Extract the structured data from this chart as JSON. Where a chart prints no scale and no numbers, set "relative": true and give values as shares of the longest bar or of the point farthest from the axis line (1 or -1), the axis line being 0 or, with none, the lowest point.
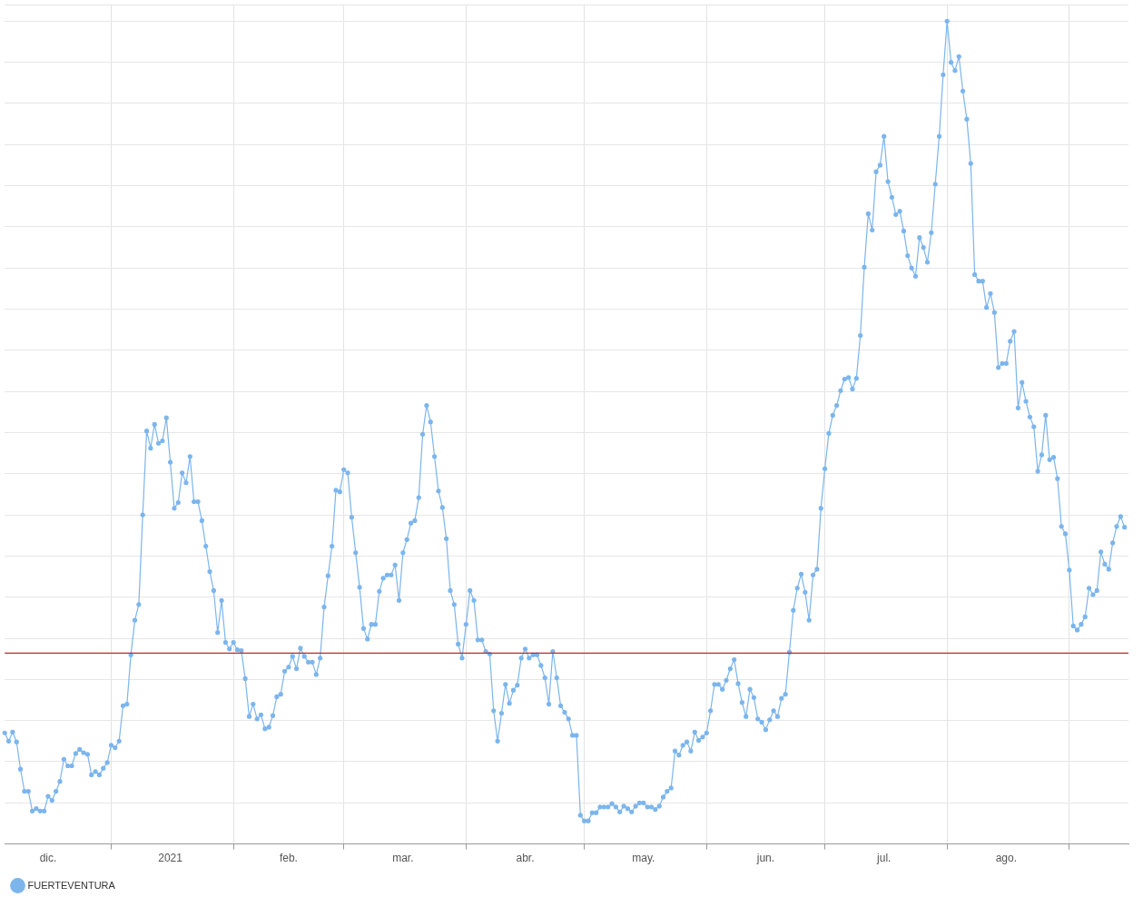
{
  "chart_data": {
    "type": "line",
    "relative": true,
    "grid": true,
    "legend": "bottom left",
    "marker": "circle",
    "line_style": "solid",
    "xlim": [
      "2020-12-05",
      "2021-09-16"
    ],
    "xticks": [
      {
        "value": "2020-12-16",
        "label": "dic."
      },
      {
        "value": "2021-01-01",
        "label": null
      },
      {
        "value": "2021-01-16",
        "label": "2021"
      },
      {
        "value": "2021-02-01",
        "label": null
      },
      {
        "value": "2021-02-15",
        "label": "feb."
      },
      {
        "value": "2021-03-01",
        "label": null
      },
      {
        "value": "2021-03-16",
        "label": "mar."
      },
      {
        "value": "2021-04-01",
        "label": null
      },
      {
        "value": "2021-04-16",
        "label": "abr."
      },
      {
        "value": "2021-05-01",
        "label": null
      },
      {
        "value": "2021-05-16",
        "label": "may."
      },
      {
        "value": "2021-06-01",
        "label": null
      },
      {
        "value": "2021-06-16",
        "label": "jun."
      },
      {
        "value": "2021-07-01",
        "label": null
      },
      {
        "value": "2021-07-16",
        "label": "jul."
      },
      {
        "value": "2021-08-01",
        "label": null
      },
      {
        "value": "2021-08-16",
        "label": "ago."
      },
      {
        "value": "2021-09-01",
        "label": null
      }
    ],
    "ref_lines": [
      {
        "axis": "y",
        "value": 0.232,
        "color": "#c0282d"
      }
    ],
    "series": [
      {
        "name": "FUERTEVENTURA",
        "color": "#7cb5ec",
        "x": [
          "2020-12-05",
          "2020-12-06",
          "2020-12-07",
          "2020-12-08",
          "2020-12-09",
          "2020-12-10",
          "2020-12-11",
          "2020-12-12",
          "2020-12-13",
          "2020-12-14",
          "2020-12-15",
          "2020-12-16",
          "2020-12-17",
          "2020-12-18",
          "2020-12-19",
          "2020-12-20",
          "2020-12-21",
          "2020-12-22",
          "2020-12-23",
          "2020-12-24",
          "2020-12-25",
          "2020-12-26",
          "2020-12-27",
          "2020-12-28",
          "2020-12-29",
          "2020-12-30",
          "2020-12-31",
          "2021-01-01",
          "2021-01-02",
          "2021-01-03",
          "2021-01-04",
          "2021-01-05",
          "2021-01-06",
          "2021-01-07",
          "2021-01-08",
          "2021-01-09",
          "2021-01-10",
          "2021-01-11",
          "2021-01-12",
          "2021-01-13",
          "2021-01-14",
          "2021-01-15",
          "2021-01-16",
          "2021-01-17",
          "2021-01-18",
          "2021-01-19",
          "2021-01-20",
          "2021-01-21",
          "2021-01-22",
          "2021-01-23",
          "2021-01-24",
          "2021-01-25",
          "2021-01-26",
          "2021-01-27",
          "2021-01-28",
          "2021-01-29",
          "2021-01-30",
          "2021-01-31",
          "2021-02-01",
          "2021-02-02",
          "2021-02-03",
          "2021-02-04",
          "2021-02-05",
          "2021-02-06",
          "2021-02-07",
          "2021-02-08",
          "2021-02-09",
          "2021-02-10",
          "2021-02-11",
          "2021-02-12",
          "2021-02-13",
          "2021-02-14",
          "2021-02-15",
          "2021-02-16",
          "2021-02-17",
          "2021-02-18",
          "2021-02-19",
          "2021-02-20",
          "2021-02-21",
          "2021-02-22",
          "2021-02-23",
          "2021-02-24",
          "2021-02-25",
          "2021-02-26",
          "2021-02-27",
          "2021-02-28",
          "2021-03-01",
          "2021-03-02",
          "2021-03-03",
          "2021-03-04",
          "2021-03-05",
          "2021-03-06",
          "2021-03-07",
          "2021-03-08",
          "2021-03-09",
          "2021-03-10",
          "2021-03-11",
          "2021-03-12",
          "2021-03-13",
          "2021-03-14",
          "2021-03-15",
          "2021-03-16",
          "2021-03-17",
          "2021-03-18",
          "2021-03-19",
          "2021-03-20",
          "2021-03-21",
          "2021-03-22",
          "2021-03-23",
          "2021-03-24",
          "2021-03-25",
          "2021-03-26",
          "2021-03-27",
          "2021-03-28",
          "2021-03-29",
          "2021-03-30",
          "2021-03-31",
          "2021-04-01",
          "2021-04-02",
          "2021-04-03",
          "2021-04-04",
          "2021-04-05",
          "2021-04-06",
          "2021-04-07",
          "2021-04-08",
          "2021-04-09",
          "2021-04-10",
          "2021-04-11",
          "2021-04-12",
          "2021-04-13",
          "2021-04-14",
          "2021-04-15",
          "2021-04-16",
          "2021-04-17",
          "2021-04-18",
          "2021-04-19",
          "2021-04-20",
          "2021-04-21",
          "2021-04-22",
          "2021-04-23",
          "2021-04-24",
          "2021-04-25",
          "2021-04-26",
          "2021-04-27",
          "2021-04-28",
          "2021-04-29",
          "2021-04-30",
          "2021-05-01",
          "2021-05-02",
          "2021-05-03",
          "2021-05-04",
          "2021-05-05",
          "2021-05-06",
          "2021-05-07",
          "2021-05-08",
          "2021-05-09",
          "2021-05-10",
          "2021-05-11",
          "2021-05-12",
          "2021-05-13",
          "2021-05-14",
          "2021-05-15",
          "2021-05-16",
          "2021-05-17",
          "2021-05-18",
          "2021-05-19",
          "2021-05-20",
          "2021-05-21",
          "2021-05-22",
          "2021-05-23",
          "2021-05-24",
          "2021-05-25",
          "2021-05-26",
          "2021-05-27",
          "2021-05-28",
          "2021-05-29",
          "2021-05-30",
          "2021-05-31",
          "2021-06-01",
          "2021-06-02",
          "2021-06-03",
          "2021-06-04",
          "2021-06-05",
          "2021-06-06",
          "2021-06-07",
          "2021-06-08",
          "2021-06-09",
          "2021-06-10",
          "2021-06-11",
          "2021-06-12",
          "2021-06-13",
          "2021-06-14",
          "2021-06-15",
          "2021-06-16",
          "2021-06-17",
          "2021-06-18",
          "2021-06-19",
          "2021-06-20",
          "2021-06-21",
          "2021-06-22",
          "2021-06-23",
          "2021-06-24",
          "2021-06-25",
          "2021-06-26",
          "2021-06-27",
          "2021-06-28",
          "2021-06-29",
          "2021-06-30",
          "2021-07-01",
          "2021-07-02",
          "2021-07-03",
          "2021-07-04",
          "2021-07-05",
          "2021-07-06",
          "2021-07-07",
          "2021-07-08",
          "2021-07-09",
          "2021-07-10",
          "2021-07-11",
          "2021-07-12",
          "2021-07-13",
          "2021-07-14",
          "2021-07-15",
          "2021-07-16",
          "2021-07-17",
          "2021-07-18",
          "2021-07-19",
          "2021-07-20",
          "2021-07-21",
          "2021-07-22",
          "2021-07-23",
          "2021-07-24",
          "2021-07-25",
          "2021-07-26",
          "2021-07-27",
          "2021-07-28",
          "2021-07-29",
          "2021-07-30",
          "2021-07-31",
          "2021-08-01",
          "2021-08-02",
          "2021-08-03",
          "2021-08-04",
          "2021-08-05",
          "2021-08-06",
          "2021-08-07",
          "2021-08-08",
          "2021-08-09",
          "2021-08-10",
          "2021-08-11",
          "2021-08-12",
          "2021-08-13",
          "2021-08-14",
          "2021-08-15",
          "2021-08-16",
          "2021-08-17",
          "2021-08-18",
          "2021-08-19",
          "2021-08-20",
          "2021-08-21",
          "2021-08-22",
          "2021-08-23",
          "2021-08-24",
          "2021-08-25",
          "2021-08-26",
          "2021-08-27",
          "2021-08-28",
          "2021-08-29",
          "2021-08-30",
          "2021-08-31",
          "2021-09-01",
          "2021-09-02",
          "2021-09-03",
          "2021-09-04",
          "2021-09-05",
          "2021-09-06",
          "2021-09-07",
          "2021-09-08",
          "2021-09-09",
          "2021-09-10",
          "2021-09-11",
          "2021-09-12",
          "2021-09-13",
          "2021-09-14",
          "2021-09-15"
        ],
        "values": [
          0.135,
          0.125,
          0.136,
          0.124,
          0.091,
          0.064,
          0.064,
          0.04,
          0.043,
          0.04,
          0.04,
          0.058,
          0.053,
          0.064,
          0.076,
          0.103,
          0.095,
          0.095,
          0.11,
          0.115,
          0.111,
          0.109,
          0.084,
          0.088,
          0.084,
          0.092,
          0.099,
          0.12,
          0.117,
          0.125,
          0.168,
          0.17,
          0.23,
          0.272,
          0.291,
          0.4,
          0.502,
          0.481,
          0.51,
          0.487,
          0.49,
          0.518,
          0.464,
          0.408,
          0.415,
          0.451,
          0.439,
          0.471,
          0.416,
          0.416,
          0.393,
          0.362,
          0.331,
          0.308,
          0.257,
          0.296,
          0.245,
          0.237,
          0.245,
          0.236,
          0.235,
          0.201,
          0.155,
          0.17,
          0.152,
          0.157,
          0.14,
          0.142,
          0.156,
          0.179,
          0.182,
          0.21,
          0.215,
          0.228,
          0.213,
          0.238,
          0.228,
          0.221,
          0.221,
          0.206,
          0.226,
          0.288,
          0.326,
          0.362,
          0.43,
          0.428,
          0.455,
          0.451,
          0.397,
          0.354,
          0.312,
          0.262,
          0.249,
          0.267,
          0.267,
          0.307,
          0.323,
          0.327,
          0.327,
          0.339,
          0.296,
          0.354,
          0.37,
          0.39,
          0.393,
          0.421,
          0.498,
          0.533,
          0.513,
          0.471,
          0.429,
          0.409,
          0.371,
          0.308,
          0.291,
          0.243,
          0.226,
          0.267,
          0.308,
          0.296,
          0.248,
          0.248,
          0.234,
          0.231,
          0.162,
          0.125,
          0.159,
          0.194,
          0.171,
          0.187,
          0.193,
          0.226,
          0.237,
          0.226,
          0.23,
          0.23,
          0.217,
          0.202,
          0.17,
          0.234,
          0.202,
          0.168,
          0.16,
          0.152,
          0.132,
          0.132,
          0.035,
          0.028,
          0.028,
          0.038,
          0.038,
          0.045,
          0.045,
          0.045,
          0.049,
          0.045,
          0.039,
          0.046,
          0.043,
          0.039,
          0.046,
          0.05,
          0.05,
          0.045,
          0.045,
          0.042,
          0.046,
          0.057,
          0.064,
          0.068,
          0.113,
          0.108,
          0.12,
          0.124,
          0.113,
          0.136,
          0.126,
          0.13,
          0.135,
          0.162,
          0.194,
          0.194,
          0.188,
          0.199,
          0.213,
          0.224,
          0.195,
          0.172,
          0.155,
          0.188,
          0.178,
          0.152,
          0.148,
          0.139,
          0.151,
          0.162,
          0.155,
          0.177,
          0.182,
          0.233,
          0.284,
          0.311,
          0.328,
          0.306,
          0.272,
          0.327,
          0.334,
          0.408,
          0.456,
          0.499,
          0.521,
          0.533,
          0.551,
          0.565,
          0.567,
          0.553,
          0.566,
          0.618,
          0.701,
          0.766,
          0.746,
          0.817,
          0.825,
          0.86,
          0.805,
          0.786,
          0.765,
          0.769,
          0.745,
          0.715,
          0.7,
          0.69,
          0.737,
          0.725,
          0.707,
          0.743,
          0.802,
          0.86,
          0.935,
          1.0,
          0.95,
          0.94,
          0.957,
          0.915,
          0.881,
          0.827,
          0.692,
          0.684,
          0.684,
          0.652,
          0.669,
          0.646,
          0.579,
          0.584,
          0.584,
          0.611,
          0.623,
          0.53,
          0.561,
          0.538,
          0.519,
          0.507,
          0.453,
          0.473,
          0.521,
          0.467,
          0.47,
          0.444,
          0.386,
          0.377,
          0.333,
          0.265,
          0.26,
          0.267,
          0.276,
          0.311,
          0.303,
          0.308,
          0.355,
          0.34,
          0.334,
          0.366,
          0.386,
          0.398,
          0.385
        ]
      }
    ]
  }
}
